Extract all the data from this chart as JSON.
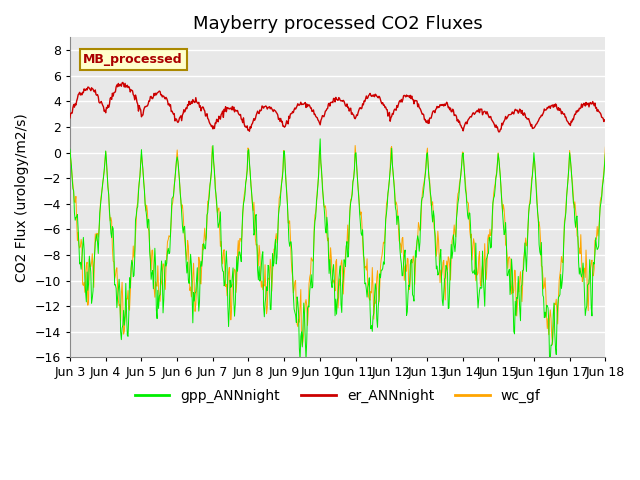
{
  "title": "Mayberry processed CO2 Fluxes",
  "ylabel": "CO2 Flux (urology/m2/s)",
  "ylim": [
    -16,
    9
  ],
  "yticks": [
    -16,
    -14,
    -12,
    -10,
    -8,
    -6,
    -4,
    -2,
    0,
    2,
    4,
    6,
    8
  ],
  "xtick_labels": [
    "Jun 3",
    "Jun 4",
    "Jun 5",
    "Jun 6",
    "Jun 7",
    "Jun 8",
    "Jun 9",
    "Jun 10",
    "Jun 11",
    "Jun 12",
    "Jun 13",
    "Jun 14",
    "Jun 15",
    "Jun 16",
    "Jun 17",
    "Jun 18"
  ],
  "annotation_text": "MB_processed",
  "annotation_color": "#aa0000",
  "annotation_bg": "#ffffcc",
  "annotation_border": "#aa8800",
  "gpp_color": "#00ee00",
  "er_color": "#cc0000",
  "wc_color": "#ffa500",
  "legend_labels": [
    "gpp_ANNnight",
    "er_ANNnight",
    "wc_gf"
  ],
  "fig_bg": "#ffffff",
  "plot_bg": "#e8e8e8",
  "grid_color": "#ffffff",
  "n_days": 15,
  "points_per_day": 48,
  "title_fontsize": 13,
  "label_fontsize": 10,
  "tick_fontsize": 9
}
